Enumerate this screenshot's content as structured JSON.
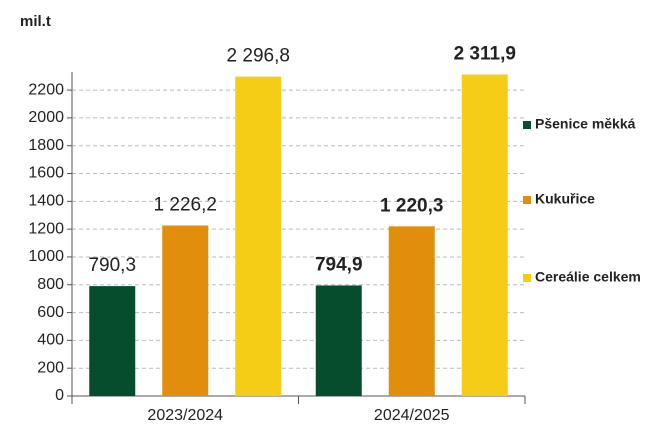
{
  "chart_data": {
    "type": "bar",
    "y_label": "mil.t",
    "categories": [
      "2023/2024",
      "2024/2025"
    ],
    "series": [
      {
        "name": "Pšenice měkká",
        "color": "#064d2e",
        "values": [
          790.3,
          794.9
        ],
        "value_labels": [
          "790,3",
          "794,9"
        ]
      },
      {
        "name": "Kukuřice",
        "color": "#e08e0b",
        "values": [
          1226.2,
          1220.3
        ],
        "value_labels": [
          "1 226,2",
          "1 220,3"
        ]
      },
      {
        "name": "Cereálie celkem",
        "color": "#f5cd17",
        "values": [
          2296.8,
          2311.9
        ],
        "value_labels": [
          "2 296,8",
          "2 311,9"
        ]
      }
    ],
    "ylim": [
      0,
      2330
    ],
    "yticks": [
      0,
      200,
      400,
      600,
      800,
      1000,
      1200,
      1400,
      1600,
      1800,
      2000,
      2200
    ],
    "grid": true
  }
}
